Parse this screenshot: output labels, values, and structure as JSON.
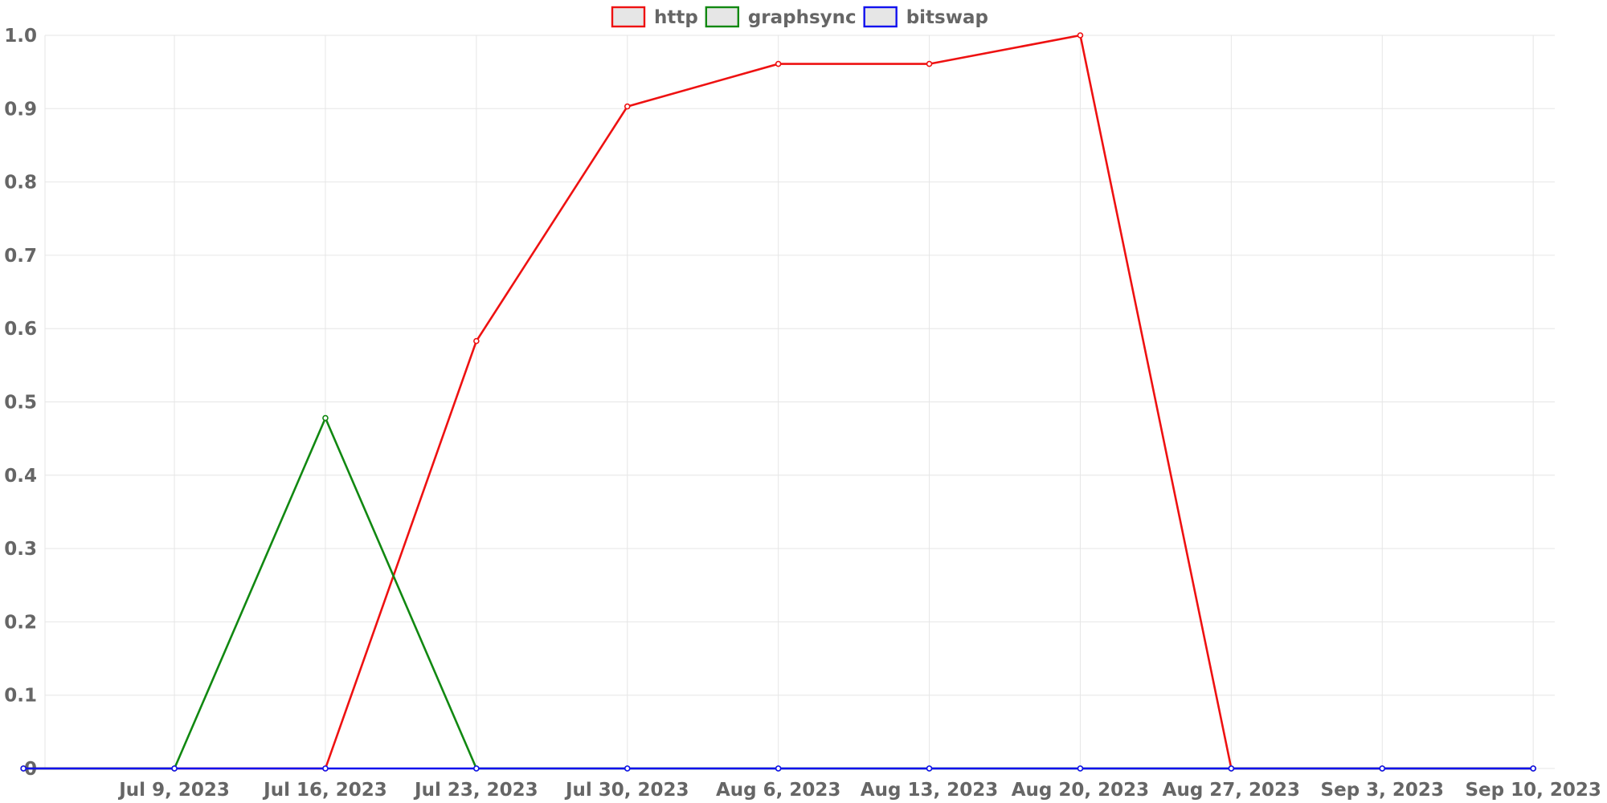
{
  "chart_data": {
    "type": "line",
    "x": [
      "2023-07-02",
      "2023-07-09",
      "2023-07-16",
      "2023-07-23",
      "2023-07-30",
      "2023-08-06",
      "2023-08-13",
      "2023-08-20",
      "2023-08-27",
      "2023-09-03",
      "2023-09-10"
    ],
    "xlim": [
      "2023-07-03",
      "2023-09-11"
    ],
    "x_ticks": [
      "Jul 9, 2023",
      "Jul 16, 2023",
      "Jul 23, 2023",
      "Jul 30, 2023",
      "Aug 6, 2023",
      "Aug 13, 2023",
      "Aug 20, 2023",
      "Aug 27, 2023",
      "Sep 3, 2023",
      "Sep 10, 2023"
    ],
    "x_tick_dates": [
      "2023-07-09",
      "2023-07-16",
      "2023-07-23",
      "2023-07-30",
      "2023-08-06",
      "2023-08-13",
      "2023-08-20",
      "2023-08-27",
      "2023-09-03",
      "2023-09-10"
    ],
    "ylim": [
      0,
      1
    ],
    "y_ticks": [
      0,
      0.1,
      0.2,
      0.3,
      0.4,
      0.5,
      0.6,
      0.7,
      0.8,
      0.9,
      1.0
    ],
    "y_tick_labels": [
      "0",
      "0.1",
      "0.2",
      "0.3",
      "0.4",
      "0.5",
      "0.6",
      "0.7",
      "0.8",
      "0.9",
      "1.0"
    ],
    "grid": true,
    "legend_position": "top-center",
    "series": [
      {
        "name": "http",
        "color": "#ee1111",
        "values": [
          0,
          0,
          0,
          0.583,
          0.903,
          0.961,
          0.961,
          1.0,
          0,
          0,
          0
        ]
      },
      {
        "name": "graphsync",
        "color": "#118811",
        "values": [
          0,
          0,
          0.478,
          0,
          0,
          0,
          0,
          0,
          0,
          0,
          0
        ]
      },
      {
        "name": "bitswap",
        "color": "#1111ee",
        "values": [
          0,
          0,
          0,
          0,
          0,
          0,
          0,
          0,
          0,
          0,
          0
        ]
      }
    ]
  }
}
